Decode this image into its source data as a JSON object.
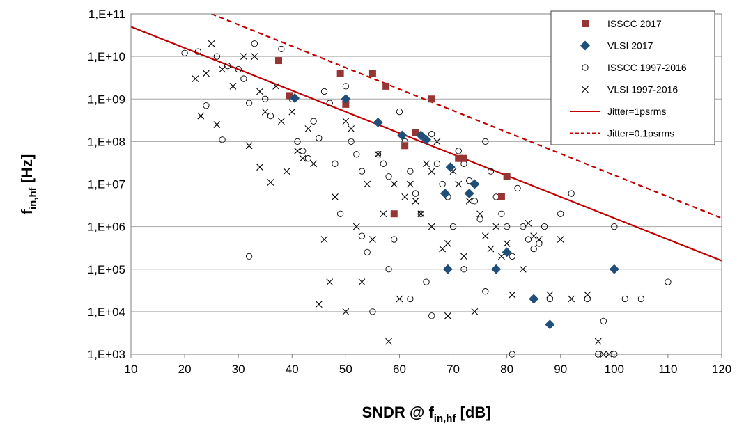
{
  "chart_data": {
    "type": "scatter",
    "title": "",
    "xlabel": "SNDR @ f",
    "xlabel_sub": "in,hf",
    "xlabel_unit": " [dB]",
    "ylabel": "f",
    "ylabel_sub": "in,hf",
    "ylabel_unit": " [Hz]",
    "xlim": [
      10,
      120
    ],
    "ylim": [
      1000,
      100000000000
    ],
    "yscale": "log",
    "grid": "horizontal",
    "legend_position": "top-right",
    "x_ticks": [
      "10",
      "20",
      "30",
      "40",
      "50",
      "60",
      "70",
      "80",
      "90",
      "100",
      "110",
      "120"
    ],
    "y_ticks": [
      "1,E+03",
      "1,E+04",
      "1,E+05",
      "1,E+06",
      "1,E+07",
      "1,E+08",
      "1,E+09",
      "1,E+10",
      "1,E+11"
    ],
    "colors": {
      "isscc2017": "#963634",
      "vlsi2017": "#1f4e79",
      "jitter": "#c00000",
      "grid": "#a6a6a6"
    },
    "lines": [
      {
        "name": "Jitter=1psrms",
        "style": "solid",
        "points": [
          [
            10,
            50000000000
          ],
          [
            120,
            158000
          ]
        ]
      },
      {
        "name": "Jitter=0.1psrms",
        "style": "dashed",
        "points": [
          [
            25,
            100000000000
          ],
          [
            120,
            1580000
          ]
        ]
      }
    ],
    "series": [
      {
        "name": "ISSCC 2017",
        "marker": "square",
        "points": [
          [
            37.5,
            8000000000.0
          ],
          [
            39.5,
            1200000000.0
          ],
          [
            49,
            4000000000.0
          ],
          [
            50,
            750000000.0
          ],
          [
            55,
            4000000000.0
          ],
          [
            57.5,
            2000000000.0
          ],
          [
            59,
            2000000.0
          ],
          [
            61,
            80000000.0
          ],
          [
            63,
            160000000.0
          ],
          [
            66,
            1000000000.0
          ],
          [
            71,
            40000000.0
          ],
          [
            72,
            40000000.0
          ],
          [
            79,
            5000000.0
          ],
          [
            80,
            15000000.0
          ]
        ]
      },
      {
        "name": "VLSI 2017",
        "marker": "diamond",
        "points": [
          [
            40.5,
            1050000000.0
          ],
          [
            50,
            1000000000.0
          ],
          [
            56,
            280000000.0
          ],
          [
            60.5,
            140000000.0
          ],
          [
            64,
            140000000.0
          ],
          [
            65,
            110000000.0
          ],
          [
            68.5,
            6000000.0
          ],
          [
            69,
            100000.0
          ],
          [
            69.5,
            25000000.0
          ],
          [
            73,
            6000000.0
          ],
          [
            74,
            10000000.0
          ],
          [
            78,
            100000.0
          ],
          [
            80,
            250000.0
          ],
          [
            85,
            20000.0
          ],
          [
            88,
            5000.0
          ],
          [
            100,
            100000.0
          ]
        ]
      },
      {
        "name": "ISSCC 1997-2016",
        "marker": "circle",
        "points": [
          [
            20,
            12000000000.0
          ],
          [
            22.5,
            13000000000.0
          ],
          [
            26,
            10000000000.0
          ],
          [
            28,
            6000000000.0
          ],
          [
            30,
            5000000000.0
          ],
          [
            31,
            3000000000.0
          ],
          [
            32,
            800000000.0
          ],
          [
            33,
            20000000000.0
          ],
          [
            36,
            400000000.0
          ],
          [
            38,
            15000000000.0
          ],
          [
            40,
            1000000000.0
          ],
          [
            41,
            100000000.0
          ],
          [
            42,
            60000000.0
          ],
          [
            44,
            300000000.0
          ],
          [
            45,
            120000000.0
          ],
          [
            46,
            1500000000.0
          ],
          [
            47,
            800000000.0
          ],
          [
            48,
            30000000.0
          ],
          [
            49,
            2000000.0
          ],
          [
            50,
            2000000000.0
          ],
          [
            51,
            100000000.0
          ],
          [
            52,
            50000000.0
          ],
          [
            53,
            20000000.0
          ],
          [
            54,
            250000.0
          ],
          [
            55,
            10000.0
          ],
          [
            56,
            50000000.0
          ],
          [
            57,
            30000000.0
          ],
          [
            58,
            15000000.0
          ],
          [
            59,
            500000.0
          ],
          [
            60,
            500000000.0
          ],
          [
            61,
            100000000.0
          ],
          [
            62,
            20000000.0
          ],
          [
            63,
            6000000.0
          ],
          [
            64,
            2000000.0
          ],
          [
            65,
            50000.0
          ],
          [
            66,
            150000000.0
          ],
          [
            67,
            30000000.0
          ],
          [
            68,
            10000000.0
          ],
          [
            69,
            5000000.0
          ],
          [
            70,
            1000000.0
          ],
          [
            71,
            60000000.0
          ],
          [
            72,
            30000000.0
          ],
          [
            73,
            12000000.0
          ],
          [
            74,
            4000000.0
          ],
          [
            75,
            1500000.0
          ],
          [
            76,
            100000000.0
          ],
          [
            77,
            20000000.0
          ],
          [
            78,
            5000000.0
          ],
          [
            79,
            2000000.0
          ],
          [
            80,
            1000000.0
          ],
          [
            81,
            200000.0
          ],
          [
            82,
            8000000.0
          ],
          [
            83,
            1000000.0
          ],
          [
            84,
            500000.0
          ],
          [
            85,
            300000.0
          ],
          [
            86,
            400000.0
          ],
          [
            87,
            1000000.0
          ],
          [
            88,
            20000.0
          ],
          [
            90,
            2000000.0
          ],
          [
            92,
            6000000.0
          ],
          [
            95,
            20000.0
          ],
          [
            98,
            6000.0
          ],
          [
            100,
            1000000.0
          ],
          [
            102,
            20000.0
          ],
          [
            105,
            20000.0
          ],
          [
            110,
            50000.0
          ],
          [
            32,
            200000.0
          ],
          [
            24,
            700000000.0
          ],
          [
            27,
            110000000.0
          ],
          [
            35,
            1000000000.0
          ],
          [
            43,
            40000000.0
          ],
          [
            53,
            600000.0
          ],
          [
            58,
            100000.0
          ],
          [
            62,
            20000.0
          ],
          [
            66,
            8000.0
          ],
          [
            72,
            100000.0
          ],
          [
            76,
            30000.0
          ],
          [
            81,
            1000.0
          ],
          [
            97,
            1000.0
          ],
          [
            100,
            1000.0
          ]
        ]
      },
      {
        "name": "VLSI 1997-2016",
        "marker": "cross",
        "points": [
          [
            22,
            3000000000.0
          ],
          [
            24,
            4000000000.0
          ],
          [
            25,
            20000000000.0
          ],
          [
            27,
            5000000000.0
          ],
          [
            29,
            2000000000.0
          ],
          [
            31,
            10000000000.0
          ],
          [
            33,
            10000000000.0
          ],
          [
            34,
            1500000000.0
          ],
          [
            35,
            500000000.0
          ],
          [
            36,
            11000000.0
          ],
          [
            37,
            2000000000.0
          ],
          [
            38,
            300000000.0
          ],
          [
            39,
            20000000.0
          ],
          [
            40,
            500000000.0
          ],
          [
            41,
            60000000.0
          ],
          [
            42,
            40000000.0
          ],
          [
            43,
            200000000.0
          ],
          [
            45,
            15000.0
          ],
          [
            46,
            500000.0
          ],
          [
            47,
            50000.0
          ],
          [
            48,
            5000000.0
          ],
          [
            50,
            10000.0
          ],
          [
            51,
            200000000.0
          ],
          [
            52,
            1000000.0
          ],
          [
            53,
            50000.0
          ],
          [
            54,
            10000000.0
          ],
          [
            55,
            500000.0
          ],
          [
            56,
            50000000.0
          ],
          [
            57,
            2000000.0
          ],
          [
            58,
            2000.0
          ],
          [
            59,
            10000000.0
          ],
          [
            60,
            20000.0
          ],
          [
            61,
            5000000.0
          ],
          [
            62,
            10000000.0
          ],
          [
            63,
            4000000.0
          ],
          [
            64,
            2000000.0
          ],
          [
            65,
            30000000.0
          ],
          [
            66,
            1000000.0
          ],
          [
            67,
            100000000.0
          ],
          [
            68,
            300000.0
          ],
          [
            69,
            8000.0
          ],
          [
            70,
            20000000.0
          ],
          [
            71,
            10000000.0
          ],
          [
            72,
            200000.0
          ],
          [
            73,
            4000000.0
          ],
          [
            74,
            10000.0
          ],
          [
            75,
            2000000.0
          ],
          [
            76,
            600000.0
          ],
          [
            77,
            300000.0
          ],
          [
            78,
            1000000.0
          ],
          [
            79,
            200000.0
          ],
          [
            80,
            400000.0
          ],
          [
            81,
            25000.0
          ],
          [
            83,
            100000.0
          ],
          [
            84,
            1200000.0
          ],
          [
            85,
            600000.0
          ],
          [
            86,
            500000.0
          ],
          [
            88,
            25000.0
          ],
          [
            90,
            500000.0
          ],
          [
            92,
            20000.0
          ],
          [
            95,
            25000.0
          ],
          [
            97,
            2000.0
          ],
          [
            98,
            1000.0
          ],
          [
            99,
            1000.0
          ],
          [
            23,
            400000000.0
          ],
          [
            26,
            250000000.0
          ],
          [
            32,
            80000000.0
          ],
          [
            34,
            25000000.0
          ],
          [
            44,
            30000000.0
          ],
          [
            50,
            300000000.0
          ],
          [
            66,
            20000000.0
          ],
          [
            69,
            400000.0
          ]
        ]
      }
    ]
  }
}
